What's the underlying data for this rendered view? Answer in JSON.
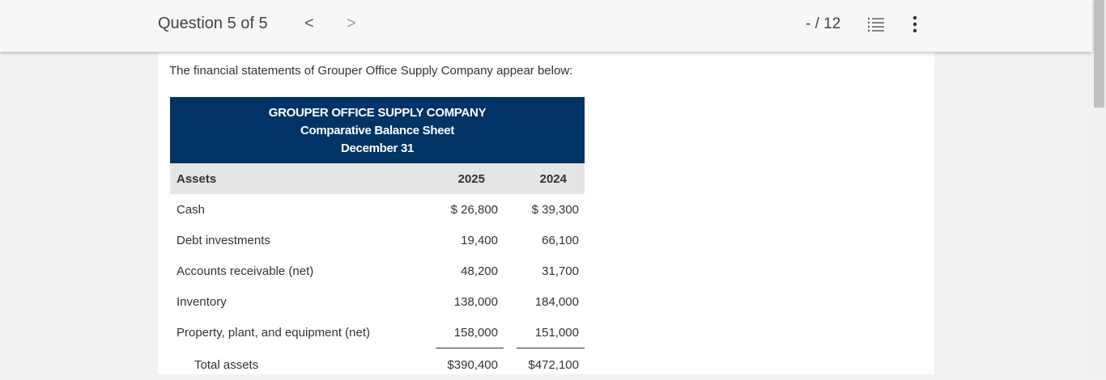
{
  "header": {
    "question_label": "Question 5 of 5",
    "prev_glyph": "<",
    "next_glyph": ">",
    "score": "- / 12"
  },
  "icons": {
    "prev": "chevron-left-icon",
    "next": "chevron-right-icon",
    "list": "list-icon",
    "more": "more-vertical-icon"
  },
  "colors": {
    "header_band": "#003366",
    "column_header_bg": "#e5e5e5"
  },
  "main": {
    "intro": "The financial statements of Grouper Office Supply Company appear below:"
  },
  "statement": {
    "company": "GROUPER OFFICE SUPPLY COMPANY",
    "title": "Comparative Balance Sheet",
    "date": "December 31",
    "columns": {
      "label": "Assets",
      "y1": "2025",
      "y2": "2024"
    },
    "rows": [
      {
        "label": "Cash",
        "y1": "$ 26,800",
        "y2": "$ 39,300"
      },
      {
        "label": "Debt investments",
        "y1": "19,400",
        "y2": "66,100"
      },
      {
        "label": "Accounts receivable (net)",
        "y1": "48,200",
        "y2": "31,700"
      },
      {
        "label": "Inventory",
        "y1": "138,000",
        "y2": "184,000"
      },
      {
        "label": "Property, plant, and equipment (net)",
        "y1": "158,000",
        "y2": "151,000"
      }
    ],
    "total": {
      "label": "Total assets",
      "y1": "$390,400",
      "y2": "$472,100"
    }
  }
}
